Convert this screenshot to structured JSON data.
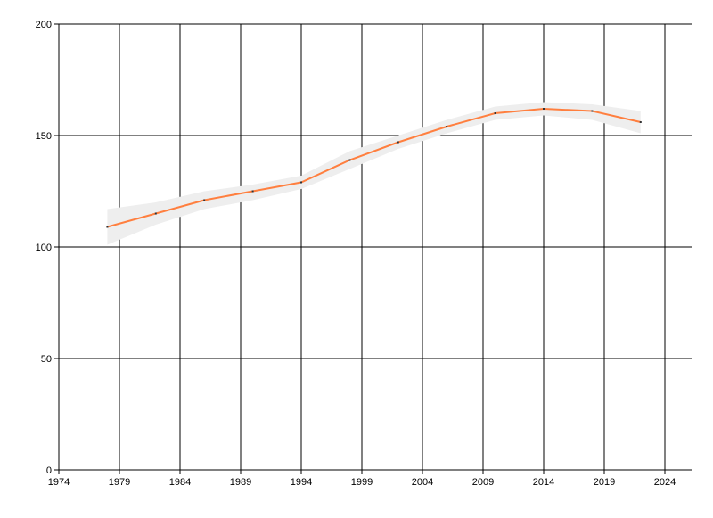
{
  "chart_data": {
    "type": "line",
    "title": "",
    "xlabel": "",
    "ylabel": "",
    "xlim": [
      1974,
      2026
    ],
    "ylim": [
      0,
      200
    ],
    "grid": true,
    "x_ticks": [
      1974,
      1979,
      1984,
      1989,
      1994,
      1999,
      2004,
      2009,
      2014,
      2019,
      2024
    ],
    "y_ticks": [
      0,
      50,
      100,
      150,
      200
    ],
    "x": [
      1978,
      1982,
      1986,
      1990,
      1994,
      1998,
      2002,
      2006,
      2010,
      2014,
      2018,
      2022
    ],
    "series": [
      {
        "values": [
          109,
          115,
          121,
          125,
          129,
          139,
          147,
          154,
          160,
          162,
          161,
          156
        ],
        "color": "#ff7f3f",
        "band_lower": [
          101,
          110,
          117,
          121,
          126,
          135,
          144,
          151,
          157,
          159,
          157,
          151
        ],
        "band_upper": [
          117,
          120,
          125,
          128,
          132,
          143,
          150,
          157,
          163,
          165,
          164,
          161
        ],
        "band_color": "#eeeeee"
      }
    ]
  }
}
